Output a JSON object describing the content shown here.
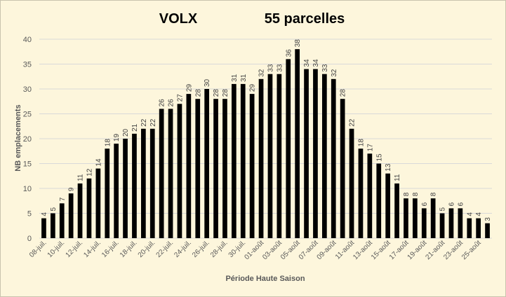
{
  "chart_data": {
    "type": "bar",
    "title": "VOLX",
    "subtitle": "55 parcelles",
    "xlabel": "Période Haute Saison",
    "ylabel": "NB emplacements",
    "ylim": [
      0,
      40
    ],
    "yticks": [
      0,
      5,
      10,
      15,
      20,
      25,
      30,
      35,
      40
    ],
    "grid": true,
    "bar_color": "#000000",
    "background_color": "#fdf6dc",
    "categories": [
      "08-juil.",
      "09-juil.",
      "10-juil.",
      "11-juil.",
      "12-juil.",
      "13-juil.",
      "14-juil.",
      "15-juil.",
      "16-juil.",
      "17-juil.",
      "18-juil.",
      "19-juil.",
      "20-juil.",
      "21-juil.",
      "22-juil.",
      "23-juil.",
      "24-juil.",
      "25-juil.",
      "26-juil.",
      "27-juil.",
      "28-juil.",
      "29-juil.",
      "30-juil.",
      "31-juil.",
      "01-août",
      "02-août",
      "03-août",
      "04-août",
      "05-août",
      "06-août",
      "07-août",
      "08-août",
      "09-août",
      "10-août",
      "11-août",
      "12-août",
      "13-août",
      "14-août",
      "15-août",
      "16-août",
      "17-août",
      "18-août",
      "19-août",
      "20-août",
      "21-août",
      "22-août",
      "23-août",
      "24-août",
      "25-août",
      "26-août"
    ],
    "values": [
      4,
      5,
      7,
      9,
      11,
      12,
      14,
      18,
      19,
      20,
      21,
      22,
      22,
      26,
      26,
      27,
      29,
      28,
      30,
      28,
      28,
      31,
      31,
      29,
      32,
      33,
      33,
      36,
      38,
      34,
      34,
      33,
      32,
      28,
      22,
      18,
      17,
      15,
      13,
      11,
      8,
      8,
      6,
      8,
      5,
      6,
      6,
      4,
      4,
      3
    ],
    "shown_tick_labels": [
      "08-juil.",
      "10-juil.",
      "12-juil.",
      "14-juil.",
      "16-juil.",
      "18-juil.",
      "20-juil.",
      "22-juil.",
      "24-juil.",
      "26-juil.",
      "28-juil.",
      "30-juil.",
      "01-août",
      "03-août",
      "05-août",
      "07-août",
      "09-août",
      "11-août",
      "13-août",
      "15-août",
      "17-août",
      "19-août",
      "21-août",
      "23-août",
      "25-août"
    ]
  }
}
